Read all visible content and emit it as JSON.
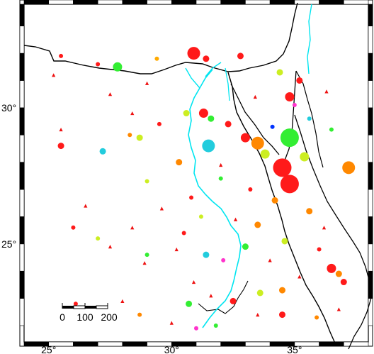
{
  "map": {
    "lon_range": [
      24,
      38
    ],
    "lat_range": [
      21.4,
      33.8
    ],
    "frame_style": "fancy checkered",
    "colors": {
      "coastline": "#000000",
      "river": "#00e5f0",
      "triangle": "#ee1111",
      "frame_dark": "#000000",
      "frame_light": "#ffffff"
    }
  },
  "axes": {
    "x_ticks": [
      {
        "lon": 25,
        "label": "25°"
      },
      {
        "lon": 30,
        "label": "30°"
      },
      {
        "lon": 35,
        "label": "35°"
      }
    ],
    "y_ticks": [
      {
        "lat": 30,
        "label": "30°"
      },
      {
        "lat": 25,
        "label": "25°"
      }
    ]
  },
  "scale_bar": {
    "labels": [
      "0",
      "100",
      "200"
    ],
    "km_values": [
      0,
      100,
      200
    ]
  },
  "events": [
    {
      "lon": 30.9,
      "lat": 32.0,
      "size": 4,
      "color": "#ff1a1a"
    },
    {
      "lon": 31.4,
      "lat": 31.8,
      "size": 2,
      "color": "#ff1a1a"
    },
    {
      "lon": 32.8,
      "lat": 31.9,
      "size": 2,
      "color": "#ff1a1a"
    },
    {
      "lon": 27.8,
      "lat": 31.5,
      "size": 3,
      "color": "#33ee33"
    },
    {
      "lon": 25.5,
      "lat": 31.9,
      "size": 1,
      "color": "#ff1a1a"
    },
    {
      "lon": 27.0,
      "lat": 31.6,
      "size": 1,
      "color": "#ff1a1a"
    },
    {
      "lon": 29.4,
      "lat": 31.8,
      "size": 1,
      "color": "#ffaa00"
    },
    {
      "lon": 34.4,
      "lat": 31.3,
      "size": 2,
      "color": "#ccee22"
    },
    {
      "lon": 35.2,
      "lat": 31.0,
      "size": 2,
      "color": "#ff1a1a"
    },
    {
      "lon": 34.8,
      "lat": 30.4,
      "size": 3,
      "color": "#ff1a1a"
    },
    {
      "lon": 35.0,
      "lat": 30.1,
      "size": 1,
      "color": "#ff33cc"
    },
    {
      "lon": 31.3,
      "lat": 29.8,
      "size": 3,
      "color": "#ff1a1a"
    },
    {
      "lon": 31.6,
      "lat": 29.6,
      "size": 2,
      "color": "#33ee33"
    },
    {
      "lon": 30.6,
      "lat": 29.8,
      "size": 2,
      "color": "#ccee22"
    },
    {
      "lon": 32.3,
      "lat": 29.4,
      "size": 2,
      "color": "#ff1a1a"
    },
    {
      "lon": 33.5,
      "lat": 28.7,
      "size": 4,
      "color": "#ff8800"
    },
    {
      "lon": 33.0,
      "lat": 28.9,
      "size": 3,
      "color": "#ff1a1a"
    },
    {
      "lon": 34.8,
      "lat": 28.9,
      "size": 5,
      "color": "#33ee33"
    },
    {
      "lon": 34.5,
      "lat": 27.8,
      "size": 5,
      "color": "#ff1a1a"
    },
    {
      "lon": 34.8,
      "lat": 27.2,
      "size": 5,
      "color": "#ff1a1a"
    },
    {
      "lon": 33.8,
      "lat": 28.3,
      "size": 3,
      "color": "#ccee22"
    },
    {
      "lon": 35.4,
      "lat": 28.2,
      "size": 3,
      "color": "#ccee22"
    },
    {
      "lon": 31.5,
      "lat": 28.6,
      "size": 4,
      "color": "#22ccdd"
    },
    {
      "lon": 30.3,
      "lat": 28.0,
      "size": 2,
      "color": "#ff8800"
    },
    {
      "lon": 27.2,
      "lat": 28.4,
      "size": 2,
      "color": "#22ccdd"
    },
    {
      "lon": 25.5,
      "lat": 28.6,
      "size": 2,
      "color": "#ff1a1a"
    },
    {
      "lon": 28.7,
      "lat": 28.9,
      "size": 2,
      "color": "#ccee22"
    },
    {
      "lon": 37.2,
      "lat": 27.8,
      "size": 4,
      "color": "#ff8800"
    },
    {
      "lon": 34.2,
      "lat": 26.6,
      "size": 2,
      "color": "#ff8800"
    },
    {
      "lon": 35.6,
      "lat": 26.2,
      "size": 2,
      "color": "#ff8800"
    },
    {
      "lon": 33.5,
      "lat": 25.7,
      "size": 2,
      "color": "#ff8800"
    },
    {
      "lon": 34.6,
      "lat": 25.1,
      "size": 2,
      "color": "#ccee22"
    },
    {
      "lon": 33.0,
      "lat": 24.9,
      "size": 2,
      "color": "#33ee33"
    },
    {
      "lon": 31.4,
      "lat": 24.6,
      "size": 2,
      "color": "#22ccdd"
    },
    {
      "lon": 29.0,
      "lat": 24.6,
      "size": 1,
      "color": "#33ee33"
    },
    {
      "lon": 27.0,
      "lat": 25.2,
      "size": 1,
      "color": "#ccee22"
    },
    {
      "lon": 26.0,
      "lat": 25.6,
      "size": 1,
      "color": "#ff1a1a"
    },
    {
      "lon": 32.1,
      "lat": 24.4,
      "size": 1,
      "color": "#ff33cc"
    },
    {
      "lon": 36.5,
      "lat": 24.1,
      "size": 3,
      "color": "#ff1a1a"
    },
    {
      "lon": 36.8,
      "lat": 23.9,
      "size": 2,
      "color": "#ff8800"
    },
    {
      "lon": 37.0,
      "lat": 23.6,
      "size": 2,
      "color": "#ff1a1a"
    },
    {
      "lon": 34.5,
      "lat": 23.3,
      "size": 2,
      "color": "#ff8800"
    },
    {
      "lon": 33.6,
      "lat": 23.2,
      "size": 2,
      "color": "#ccee22"
    },
    {
      "lon": 32.5,
      "lat": 22.9,
      "size": 2,
      "color": "#ff1a1a"
    },
    {
      "lon": 30.7,
      "lat": 22.8,
      "size": 2,
      "color": "#33ee33"
    },
    {
      "lon": 28.7,
      "lat": 22.4,
      "size": 1,
      "color": "#ff8800"
    },
    {
      "lon": 34.5,
      "lat": 22.4,
      "size": 2,
      "color": "#ff1a1a"
    },
    {
      "lon": 31.8,
      "lat": 22.0,
      "size": 1,
      "color": "#33ee33"
    },
    {
      "lon": 26.1,
      "lat": 22.8,
      "size": 1,
      "color": "#ff1a1a"
    },
    {
      "lon": 31.0,
      "lat": 21.9,
      "size": 1,
      "color": "#ff33cc"
    },
    {
      "lon": 36.0,
      "lat": 24.8,
      "size": 1,
      "color": "#ff1a1a"
    },
    {
      "lon": 33.2,
      "lat": 27.0,
      "size": 1,
      "color": "#ff1a1a"
    },
    {
      "lon": 32.0,
      "lat": 27.4,
      "size": 1,
      "color": "#33ee33"
    },
    {
      "lon": 30.8,
      "lat": 26.7,
      "size": 1,
      "color": "#ff1a1a"
    },
    {
      "lon": 31.2,
      "lat": 26.0,
      "size": 1,
      "color": "#ccee22"
    },
    {
      "lon": 34.1,
      "lat": 29.3,
      "size": 1,
      "color": "#0033ff"
    },
    {
      "lon": 35.6,
      "lat": 29.6,
      "size": 1,
      "color": "#22ccdd"
    },
    {
      "lon": 36.5,
      "lat": 29.2,
      "size": 1,
      "color": "#33ee33"
    },
    {
      "lon": 29.5,
      "lat": 29.4,
      "size": 1,
      "color": "#ff1a1a"
    },
    {
      "lon": 28.3,
      "lat": 29.0,
      "size": 1,
      "color": "#ff8800"
    },
    {
      "lon": 29.0,
      "lat": 27.3,
      "size": 1,
      "color": "#ccee22"
    },
    {
      "lon": 30.5,
      "lat": 25.4,
      "size": 1,
      "color": "#ff1a1a"
    },
    {
      "lon": 35.9,
      "lat": 22.3,
      "size": 1,
      "color": "#ff8800"
    }
  ],
  "triangles": [
    {
      "lon": 25.2,
      "lat": 31.2
    },
    {
      "lon": 29.0,
      "lat": 30.9
    },
    {
      "lon": 27.5,
      "lat": 30.5
    },
    {
      "lon": 25.5,
      "lat": 29.2
    },
    {
      "lon": 28.4,
      "lat": 29.8
    },
    {
      "lon": 33.4,
      "lat": 30.4
    },
    {
      "lon": 36.3,
      "lat": 30.6
    },
    {
      "lon": 32.0,
      "lat": 27.9
    },
    {
      "lon": 29.6,
      "lat": 26.3
    },
    {
      "lon": 28.4,
      "lat": 25.6
    },
    {
      "lon": 27.5,
      "lat": 24.9
    },
    {
      "lon": 28.9,
      "lat": 24.3
    },
    {
      "lon": 30.2,
      "lat": 24.8
    },
    {
      "lon": 30.9,
      "lat": 23.6
    },
    {
      "lon": 31.6,
      "lat": 23.1
    },
    {
      "lon": 33.5,
      "lat": 22.4
    },
    {
      "lon": 35.2,
      "lat": 23.8
    },
    {
      "lon": 36.2,
      "lat": 25.6
    },
    {
      "lon": 34.0,
      "lat": 24.4
    },
    {
      "lon": 30.0,
      "lat": 22.1
    },
    {
      "lon": 32.6,
      "lat": 25.9
    },
    {
      "lon": 26.5,
      "lat": 26.4
    },
    {
      "lon": 28.0,
      "lat": 22.9
    },
    {
      "lon": 36.8,
      "lat": 22.6
    }
  ]
}
